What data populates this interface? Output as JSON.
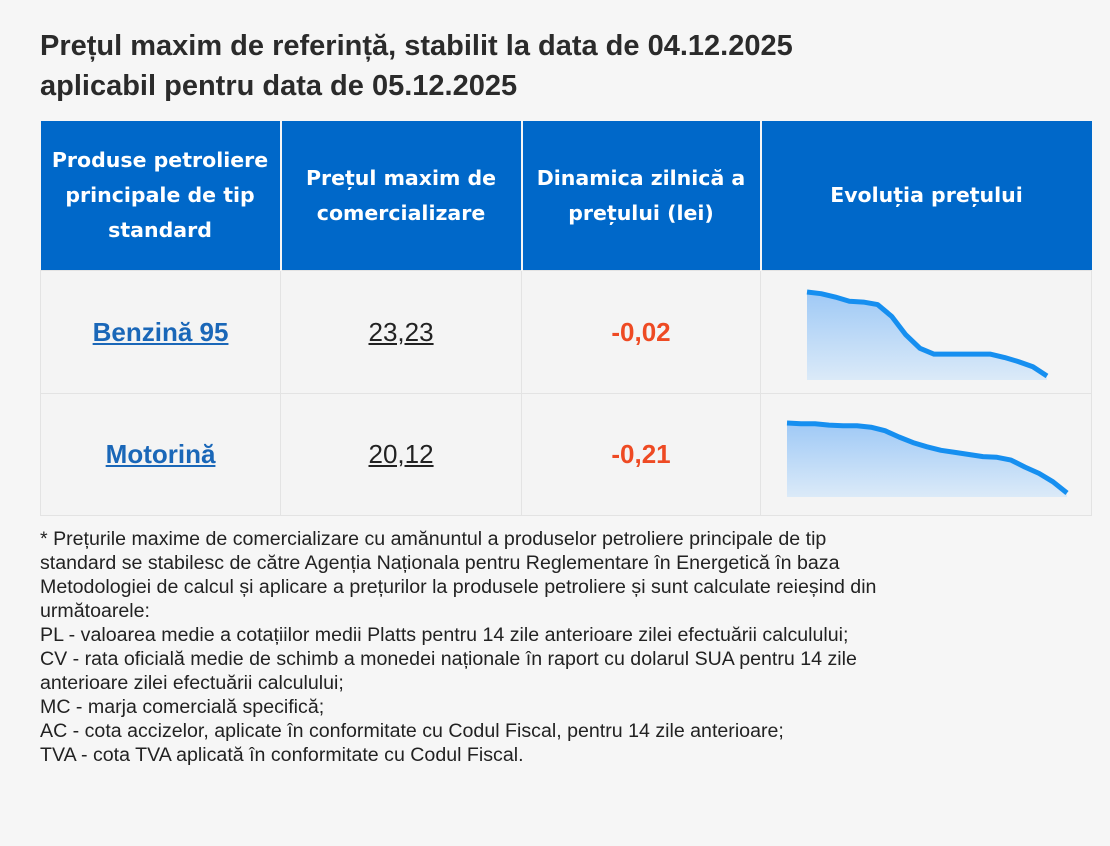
{
  "title_lines": [
    "Prețul maxim de referință, stabilit la data de 04.12.2025",
    "aplicabil pentru data de 05.12.2025"
  ],
  "table": {
    "headers": [
      [
        "Produse petroliere",
        "principale de tip",
        "standard"
      ],
      [
        "Prețul maxim de",
        "comercializare"
      ],
      [
        "Dinamica zilnică a",
        "prețului (lei)"
      ],
      [
        "Evoluția prețului"
      ]
    ],
    "rows": [
      {
        "product": "Benzină 95",
        "price": "23,23",
        "dynamic": "-0,02",
        "trend": [
          100,
          98,
          94,
          89,
          88,
          85,
          71,
          49,
          33,
          26,
          26,
          26,
          26,
          26,
          22,
          17,
          11,
          0
        ]
      },
      {
        "product": "Motorină",
        "price": "20,12",
        "dynamic": "-0,21",
        "trend": [
          100,
          99,
          99,
          97,
          96,
          96,
          94,
          89,
          80,
          72,
          66,
          61,
          58,
          55,
          52,
          51,
          47,
          37,
          28,
          16,
          0
        ]
      }
    ]
  },
  "colors": {
    "header_bg": "#0068c9",
    "link": "#1a67b8",
    "negative": "#ee4a23",
    "spark_line": "#168ff0"
  },
  "footnote_lines": [
    "* Prețurile maxime de comercializare cu amănuntul a produselor petroliere principale de tip",
    "standard se stabilesc de către Agenția Naționala pentru Reglementare în Energetică în baza",
    "Metodologiei de calcul și aplicare a prețurilor la produsele petroliere și sunt calculate reieșind din",
    "următoarele:",
    "PL - valoarea medie a cotațiilor medii Platts pentru 14 zile anterioare zilei efectuării calculului;",
    "CV - rata oficială medie de schimb a monedei naționale în raport cu dolarul SUA pentru 14 zile",
    "anterioare zilei efectuării calculului;",
    "MC - marja comercială specifică;",
    "AC - cota accizelor, aplicate în conformitate cu Codul Fiscal, pentru 14 zile anterioare;",
    "TVA - cota TVA aplicată în conformitate cu Codul Fiscal."
  ]
}
